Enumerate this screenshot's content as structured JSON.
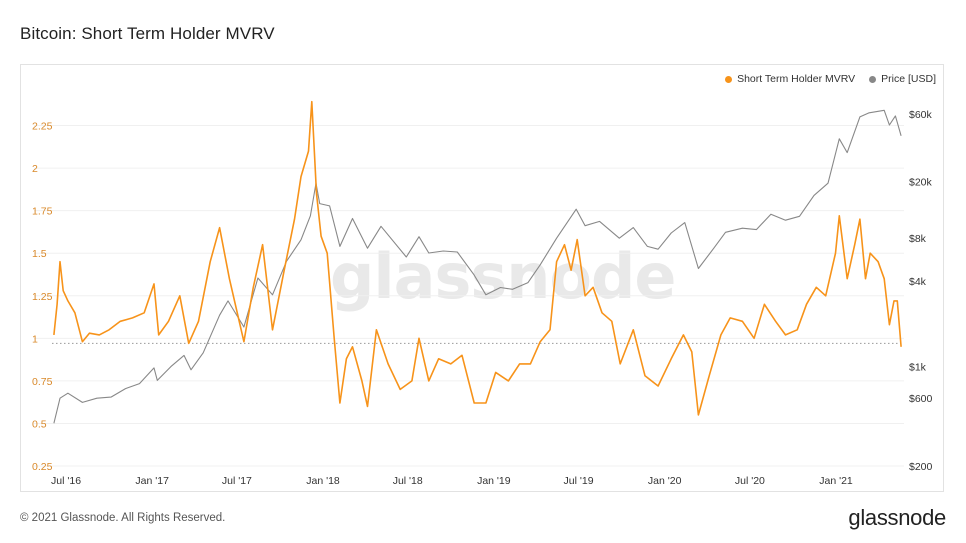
{
  "header": {
    "title": "Bitcoin: Short Term Holder MVRV"
  },
  "footer": {
    "copyright": "© 2021 Glassnode. All Rights Reserved.",
    "brand": "glassnode"
  },
  "watermark": "glassnode",
  "colors": {
    "mvrv": "#f7931a",
    "price": "#888888",
    "left_axis_text": "#d9892a",
    "right_axis_text": "#333333",
    "reference_line": "#999999"
  },
  "chart_data": {
    "type": "line",
    "title": "Bitcoin: Short Term Holder MVRV",
    "legend": {
      "placement": "top-right",
      "entries": [
        "Short Term Holder MVRV",
        "Price [USD]"
      ]
    },
    "x_range": [
      "2016-06-01",
      "2021-05-22"
    ],
    "x_ticks": [
      {
        "date": "2016-07-01",
        "label": "Jul '16"
      },
      {
        "date": "2017-01-01",
        "label": "Jan '17"
      },
      {
        "date": "2017-07-01",
        "label": "Jul '17"
      },
      {
        "date": "2018-01-01",
        "label": "Jan '18"
      },
      {
        "date": "2018-07-01",
        "label": "Jul '18"
      },
      {
        "date": "2019-01-01",
        "label": "Jan '19"
      },
      {
        "date": "2019-07-01",
        "label": "Jul '19"
      },
      {
        "date": "2020-01-01",
        "label": "Jan '20"
      },
      {
        "date": "2020-07-01",
        "label": "Jul '20"
      },
      {
        "date": "2021-01-01",
        "label": "Jan '21"
      }
    ],
    "left_axis": {
      "range": [
        0.25,
        2.4
      ],
      "ticks": [
        {
          "value": 0.25,
          "label": "0.25"
        },
        {
          "value": 0.5,
          "label": "0.5"
        },
        {
          "value": 0.75,
          "label": "0.75"
        },
        {
          "value": 1,
          "label": "1"
        },
        {
          "value": 1.25,
          "label": "1.25"
        },
        {
          "value": 1.5,
          "label": "1.5"
        },
        {
          "value": 1.75,
          "label": "1.75"
        },
        {
          "value": 2,
          "label": "2"
        },
        {
          "value": 2.25,
          "label": "2.25"
        }
      ]
    },
    "right_axis": {
      "scale": "log",
      "range": [
        200,
        75000
      ],
      "ticks": [
        {
          "value": 200,
          "label": "$200"
        },
        {
          "value": 600,
          "label": "$600"
        },
        {
          "value": 1000,
          "label": "$1k"
        },
        {
          "value": 4000,
          "label": "$4k"
        },
        {
          "value": 8000,
          "label": "$8k"
        },
        {
          "value": 20000,
          "label": "$20k"
        },
        {
          "value": 60000,
          "label": "$60k"
        }
      ]
    },
    "reference_line": {
      "axis": "left",
      "value": 0.97
    },
    "grid": {
      "horizontal": true,
      "vertical": false
    },
    "series": [
      {
        "name": "Short Term Holder MVRV",
        "axis": "left",
        "points": [
          [
            "2016-06-05",
            1.02
          ],
          [
            "2016-06-12",
            1.2
          ],
          [
            "2016-06-18",
            1.45
          ],
          [
            "2016-06-25",
            1.28
          ],
          [
            "2016-07-05",
            1.22
          ],
          [
            "2016-07-20",
            1.15
          ],
          [
            "2016-08-05",
            0.98
          ],
          [
            "2016-08-20",
            1.03
          ],
          [
            "2016-09-10",
            1.02
          ],
          [
            "2016-10-01",
            1.05
          ],
          [
            "2016-10-25",
            1.1
          ],
          [
            "2016-11-20",
            1.12
          ],
          [
            "2016-12-15",
            1.15
          ],
          [
            "2017-01-05",
            1.32
          ],
          [
            "2017-01-15",
            1.02
          ],
          [
            "2017-02-05",
            1.1
          ],
          [
            "2017-03-01",
            1.25
          ],
          [
            "2017-03-20",
            0.97
          ],
          [
            "2017-04-10",
            1.1
          ],
          [
            "2017-05-05",
            1.45
          ],
          [
            "2017-05-25",
            1.65
          ],
          [
            "2017-06-15",
            1.35
          ],
          [
            "2017-07-16",
            0.98
          ],
          [
            "2017-08-05",
            1.3
          ],
          [
            "2017-08-25",
            1.55
          ],
          [
            "2017-09-15",
            1.05
          ],
          [
            "2017-10-10",
            1.4
          ],
          [
            "2017-11-01",
            1.7
          ],
          [
            "2017-11-15",
            1.95
          ],
          [
            "2017-12-01",
            2.1
          ],
          [
            "2017-12-08",
            2.39
          ],
          [
            "2017-12-18",
            1.85
          ],
          [
            "2017-12-28",
            1.6
          ],
          [
            "2018-01-10",
            1.5
          ],
          [
            "2018-01-25",
            1.0
          ],
          [
            "2018-02-06",
            0.62
          ],
          [
            "2018-02-20",
            0.88
          ],
          [
            "2018-03-05",
            0.95
          ],
          [
            "2018-03-25",
            0.75
          ],
          [
            "2018-04-06",
            0.6
          ],
          [
            "2018-04-25",
            1.05
          ],
          [
            "2018-05-20",
            0.85
          ],
          [
            "2018-06-15",
            0.7
          ],
          [
            "2018-07-10",
            0.75
          ],
          [
            "2018-07-25",
            1.0
          ],
          [
            "2018-08-15",
            0.75
          ],
          [
            "2018-09-05",
            0.88
          ],
          [
            "2018-10-01",
            0.85
          ],
          [
            "2018-10-25",
            0.9
          ],
          [
            "2018-11-20",
            0.62
          ],
          [
            "2018-12-15",
            0.62
          ],
          [
            "2019-01-05",
            0.8
          ],
          [
            "2019-02-01",
            0.75
          ],
          [
            "2019-02-25",
            0.85
          ],
          [
            "2019-03-20",
            0.85
          ],
          [
            "2019-04-10",
            0.98
          ],
          [
            "2019-05-01",
            1.05
          ],
          [
            "2019-05-15",
            1.45
          ],
          [
            "2019-06-01",
            1.55
          ],
          [
            "2019-06-15",
            1.4
          ],
          [
            "2019-06-28",
            1.58
          ],
          [
            "2019-07-15",
            1.25
          ],
          [
            "2019-08-01",
            1.3
          ],
          [
            "2019-08-20",
            1.15
          ],
          [
            "2019-09-10",
            1.1
          ],
          [
            "2019-09-28",
            0.85
          ],
          [
            "2019-10-26",
            1.05
          ],
          [
            "2019-11-20",
            0.78
          ],
          [
            "2019-12-18",
            0.72
          ],
          [
            "2020-01-15",
            0.88
          ],
          [
            "2020-02-10",
            1.02
          ],
          [
            "2020-02-28",
            0.92
          ],
          [
            "2020-03-13",
            0.55
          ],
          [
            "2020-04-05",
            0.78
          ],
          [
            "2020-04-30",
            1.02
          ],
          [
            "2020-05-20",
            1.12
          ],
          [
            "2020-06-15",
            1.1
          ],
          [
            "2020-07-10",
            1.0
          ],
          [
            "2020-08-01",
            1.2
          ],
          [
            "2020-08-25",
            1.1
          ],
          [
            "2020-09-15",
            1.02
          ],
          [
            "2020-10-10",
            1.05
          ],
          [
            "2020-10-30",
            1.2
          ],
          [
            "2020-11-20",
            1.3
          ],
          [
            "2020-12-10",
            1.25
          ],
          [
            "2020-12-31",
            1.5
          ],
          [
            "2021-01-08",
            1.72
          ],
          [
            "2021-01-25",
            1.35
          ],
          [
            "2021-02-10",
            1.55
          ],
          [
            "2021-02-21",
            1.7
          ],
          [
            "2021-03-05",
            1.35
          ],
          [
            "2021-03-15",
            1.5
          ],
          [
            "2021-04-01",
            1.45
          ],
          [
            "2021-04-14",
            1.35
          ],
          [
            "2021-04-25",
            1.08
          ],
          [
            "2021-05-05",
            1.22
          ],
          [
            "2021-05-12",
            1.22
          ],
          [
            "2021-05-20",
            0.95
          ]
        ]
      },
      {
        "name": "Price [USD]",
        "axis": "right",
        "points": [
          [
            "2016-06-05",
            400
          ],
          [
            "2016-06-18",
            600
          ],
          [
            "2016-07-05",
            650
          ],
          [
            "2016-08-05",
            560
          ],
          [
            "2016-09-05",
            600
          ],
          [
            "2016-10-05",
            610
          ],
          [
            "2016-11-05",
            700
          ],
          [
            "2016-12-05",
            760
          ],
          [
            "2017-01-05",
            980
          ],
          [
            "2017-01-12",
            800
          ],
          [
            "2017-02-10",
            1000
          ],
          [
            "2017-03-10",
            1200
          ],
          [
            "2017-03-25",
            950
          ],
          [
            "2017-04-20",
            1250
          ],
          [
            "2017-05-25",
            2300
          ],
          [
            "2017-06-12",
            2900
          ],
          [
            "2017-07-16",
            1900
          ],
          [
            "2017-08-15",
            4200
          ],
          [
            "2017-09-15",
            3200
          ],
          [
            "2017-10-15",
            5500
          ],
          [
            "2017-11-15",
            7800
          ],
          [
            "2017-12-05",
            11500
          ],
          [
            "2017-12-17",
            19500
          ],
          [
            "2017-12-25",
            14000
          ],
          [
            "2018-01-15",
            13500
          ],
          [
            "2018-02-06",
            7000
          ],
          [
            "2018-03-05",
            11000
          ],
          [
            "2018-04-06",
            6800
          ],
          [
            "2018-05-05",
            9700
          ],
          [
            "2018-06-28",
            5900
          ],
          [
            "2018-07-25",
            8200
          ],
          [
            "2018-08-15",
            6300
          ],
          [
            "2018-09-15",
            6500
          ],
          [
            "2018-10-15",
            6400
          ],
          [
            "2018-11-20",
            4400
          ],
          [
            "2018-12-15",
            3200
          ],
          [
            "2019-01-15",
            3600
          ],
          [
            "2019-02-10",
            3500
          ],
          [
            "2019-03-15",
            3900
          ],
          [
            "2019-04-10",
            5200
          ],
          [
            "2019-05-15",
            8000
          ],
          [
            "2019-06-26",
            12800
          ],
          [
            "2019-07-15",
            9800
          ],
          [
            "2019-08-15",
            10500
          ],
          [
            "2019-09-26",
            8000
          ],
          [
            "2019-10-26",
            9500
          ],
          [
            "2019-11-25",
            7000
          ],
          [
            "2019-12-18",
            6700
          ],
          [
            "2020-01-15",
            8700
          ],
          [
            "2020-02-13",
            10300
          ],
          [
            "2020-03-13",
            4900
          ],
          [
            "2020-04-15",
            6800
          ],
          [
            "2020-05-10",
            8800
          ],
          [
            "2020-06-15",
            9400
          ],
          [
            "2020-07-15",
            9200
          ],
          [
            "2020-08-15",
            11800
          ],
          [
            "2020-09-15",
            10700
          ],
          [
            "2020-10-15",
            11400
          ],
          [
            "2020-11-15",
            16000
          ],
          [
            "2020-12-15",
            19500
          ],
          [
            "2021-01-08",
            40000
          ],
          [
            "2021-01-25",
            32000
          ],
          [
            "2021-02-21",
            57000
          ],
          [
            "2021-03-13",
            61000
          ],
          [
            "2021-04-14",
            63500
          ],
          [
            "2021-04-25",
            50000
          ],
          [
            "2021-05-08",
            58000
          ],
          [
            "2021-05-20",
            42000
          ]
        ]
      }
    ]
  }
}
